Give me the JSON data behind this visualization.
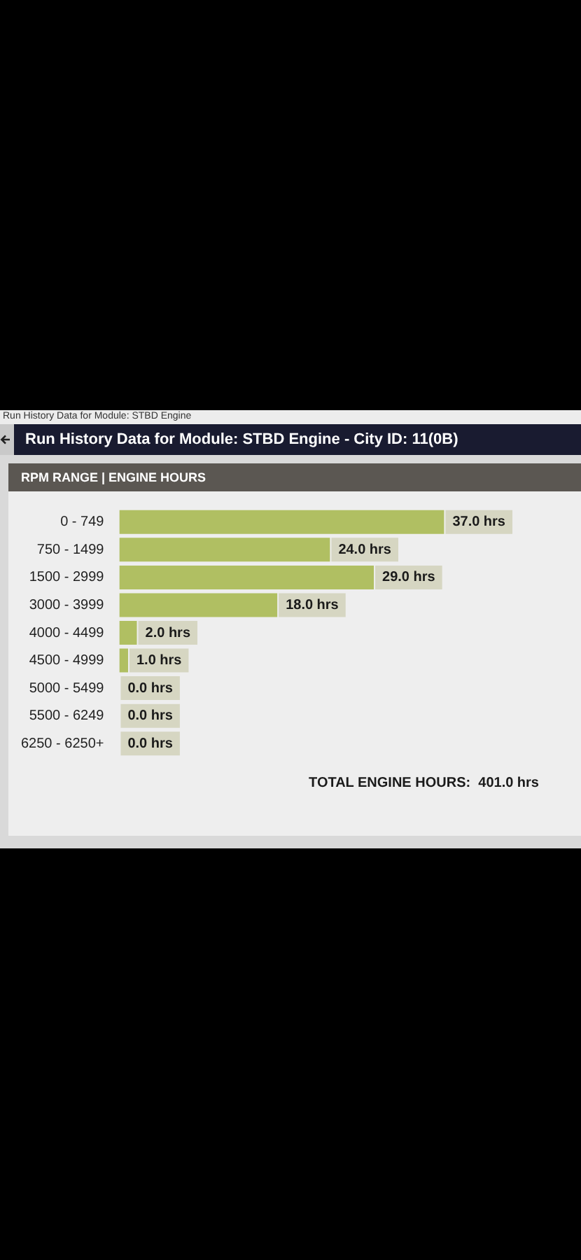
{
  "chart_data": {
    "type": "bar",
    "orientation": "horizontal",
    "title": "Run History Data for Module: STBD Engine - City ID: 11(0B)",
    "subtitle": "RPM RANGE | ENGINE HOURS",
    "annotations": [
      "Run History Data for Module: STBD Engine",
      "TOTAL ENGINE HOURS:  401.0 hrs"
    ],
    "categories": [
      "0 - 749",
      "750 - 1499",
      "1500 - 2999",
      "3000 - 3999",
      "4000 - 4499",
      "4500 - 4999",
      "5000 - 5499",
      "5500 - 6249",
      "6250 - 6250+"
    ],
    "values": [
      37.0,
      24.0,
      29.0,
      18.0,
      2.0,
      1.0,
      0.0,
      0.0,
      0.0
    ],
    "value_labels": [
      "37.0 hrs",
      "24.0 hrs",
      "29.0 hrs",
      "18.0 hrs",
      "2.0 hrs",
      "1.0 hrs",
      "0.0 hrs",
      "0.0 hrs",
      "0.0 hrs"
    ],
    "color": "#b0bf62",
    "tick_labels": "y"
  }
}
